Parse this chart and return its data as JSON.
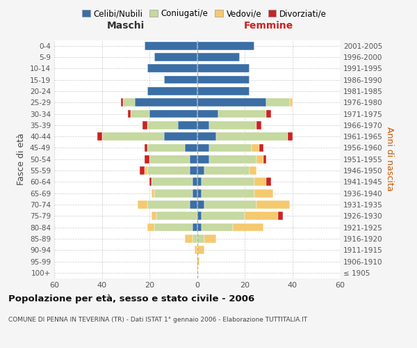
{
  "age_groups": [
    "100+",
    "95-99",
    "90-94",
    "85-89",
    "80-84",
    "75-79",
    "70-74",
    "65-69",
    "60-64",
    "55-59",
    "50-54",
    "45-49",
    "40-44",
    "35-39",
    "30-34",
    "25-29",
    "20-24",
    "15-19",
    "10-14",
    "5-9",
    "0-4"
  ],
  "birth_years": [
    "≤ 1905",
    "1906-1910",
    "1911-1915",
    "1916-1920",
    "1921-1925",
    "1926-1930",
    "1931-1935",
    "1936-1940",
    "1941-1945",
    "1946-1950",
    "1951-1955",
    "1956-1960",
    "1961-1965",
    "1966-1970",
    "1971-1975",
    "1976-1980",
    "1981-1985",
    "1986-1990",
    "1991-1995",
    "1996-2000",
    "2001-2005"
  ],
  "male_celibi": [
    0,
    0,
    0,
    0,
    2,
    0,
    3,
    2,
    2,
    3,
    3,
    5,
    14,
    8,
    20,
    26,
    21,
    14,
    21,
    18,
    22
  ],
  "male_coniugati": [
    0,
    0,
    0,
    2,
    16,
    17,
    18,
    16,
    17,
    18,
    17,
    16,
    26,
    13,
    8,
    5,
    0,
    0,
    0,
    0,
    0
  ],
  "male_vedovi": [
    0,
    0,
    1,
    3,
    3,
    2,
    4,
    1,
    0,
    1,
    0,
    0,
    0,
    0,
    0,
    0,
    0,
    0,
    0,
    0,
    0
  ],
  "male_divorziati": [
    0,
    0,
    0,
    0,
    0,
    0,
    0,
    0,
    1,
    2,
    2,
    1,
    2,
    2,
    1,
    1,
    0,
    0,
    0,
    0,
    0
  ],
  "female_celibi": [
    0,
    0,
    0,
    0,
    2,
    2,
    3,
    2,
    2,
    3,
    5,
    5,
    8,
    5,
    9,
    29,
    22,
    22,
    22,
    18,
    24
  ],
  "female_coniugati": [
    0,
    0,
    0,
    3,
    13,
    18,
    22,
    22,
    22,
    19,
    20,
    18,
    30,
    20,
    20,
    10,
    0,
    0,
    0,
    0,
    0
  ],
  "female_vedovi": [
    0,
    1,
    3,
    5,
    13,
    14,
    14,
    8,
    5,
    3,
    3,
    3,
    0,
    0,
    0,
    1,
    0,
    0,
    0,
    0,
    0
  ],
  "female_divorziati": [
    0,
    0,
    0,
    0,
    0,
    2,
    0,
    0,
    2,
    0,
    1,
    2,
    2,
    2,
    2,
    0,
    0,
    0,
    0,
    0,
    0
  ],
  "colors": {
    "celibi": "#3a6ea5",
    "coniugati": "#c5d9a0",
    "vedovi": "#f5c96e",
    "divorziati": "#cc2222"
  },
  "xlim": 60,
  "title": "Popolazione per età, sesso e stato civile - 2006",
  "subtitle": "COMUNE DI PENNA IN TEVERINA (TR) - Dati ISTAT 1° gennaio 2006 - Elaborazione TUTTITALIA.IT",
  "ylabel_left": "Fasce di età",
  "ylabel_right": "Anni di nascita",
  "xlabel_male": "Maschi",
  "xlabel_female": "Femmine",
  "legend_labels": [
    "Celibi/Nubili",
    "Coniugati/e",
    "Vedovi/e",
    "Divorziati/e"
  ],
  "bg_color": "#f5f5f5",
  "plot_bg": "#ffffff",
  "grid_color": "#cccccc",
  "center_line_color": "#aaaaaa"
}
